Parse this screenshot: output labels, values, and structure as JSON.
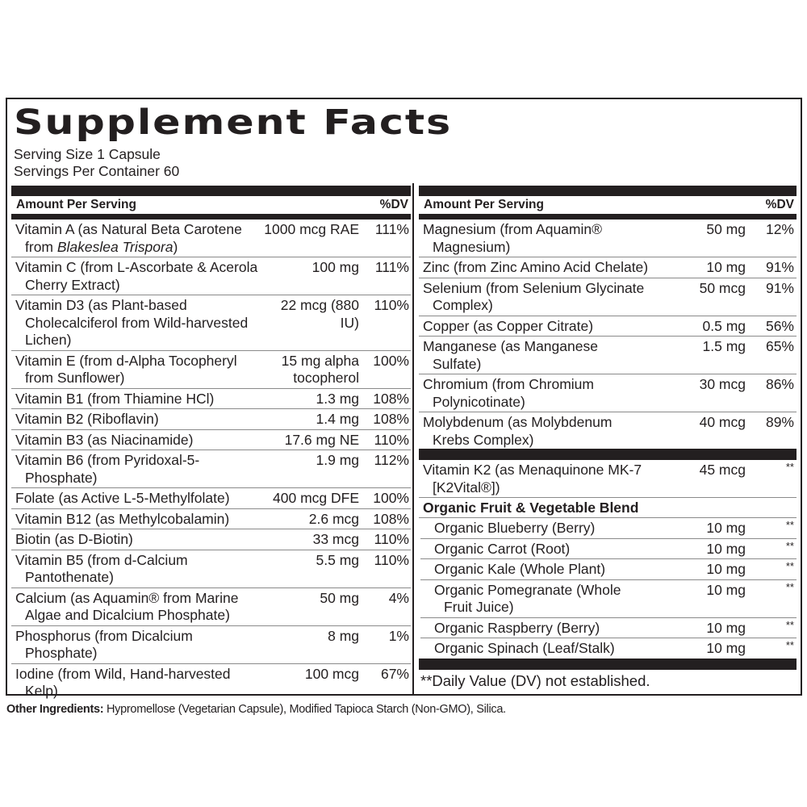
{
  "title": "Supplement Facts",
  "serving_size": "Serving Size 1 Capsule",
  "servings_per_container": "Servings Per Container 60",
  "header": {
    "amount": "Amount Per Serving",
    "dv": "%DV"
  },
  "left_rows": [
    {
      "name": "Vitamin A (as Natural Beta Carotene from ",
      "name_italic": "Blakeslea Trispora",
      "name_suffix": ")",
      "amount": "1000 mcg RAE",
      "dv": "111%"
    },
    {
      "name": "Vitamin C (from L-Ascorbate & Acerola Cherry Extract)",
      "amount": "100 mg",
      "dv": "111%"
    },
    {
      "name": "Vitamin D3 (as Plant-based Cholecalciferol from Wild-harvested Lichen)",
      "amount": "22 mcg (880 IU)",
      "dv": "110%"
    },
    {
      "name": "Vitamin E (from d-Alpha Tocopheryl from Sunflower)",
      "amount": "15 mg alpha tocopherol",
      "dv": "100%"
    },
    {
      "name": "Vitamin B1 (from Thiamine HCl)",
      "amount": "1.3 mg",
      "dv": "108%"
    },
    {
      "name": "Vitamin B2 (Riboflavin)",
      "amount": "1.4 mg",
      "dv": "108%"
    },
    {
      "name": "Vitamin B3 (as Niacinamide)",
      "amount": "17.6 mg NE",
      "dv": "110%"
    },
    {
      "name": "Vitamin B6 (from Pyridoxal-5-Phosphate)",
      "amount": "1.9 mg",
      "dv": "112%"
    },
    {
      "name": "Folate (as Active L-5-Methylfolate)",
      "amount": "400 mcg DFE",
      "dv": "100%"
    },
    {
      "name": "Vitamin B12 (as Methylcobalamin)",
      "amount": "2.6 mcg",
      "dv": "108%"
    },
    {
      "name": "Biotin (as D-Biotin)",
      "amount": "33 mcg",
      "dv": "110%"
    },
    {
      "name": "Vitamin B5 (from d-Calcium Pantothenate)",
      "amount": "5.5 mg",
      "dv": "110%"
    },
    {
      "name": "Calcium (as Aquamin® from Marine Algae and Dicalcium Phosphate)",
      "amount": "50 mg",
      "dv": "4%"
    },
    {
      "name": "Phosphorus (from Dicalcium Phosphate)",
      "amount": "8 mg",
      "dv": "1%"
    },
    {
      "name": "Iodine (from Wild, Hand-harvested Kelp)",
      "amount": "100 mcg",
      "dv": "67%"
    }
  ],
  "right_rows": [
    {
      "name": "Magnesium (from Aquamin® Magnesium)",
      "amount": "50 mg",
      "dv": "12%"
    },
    {
      "name": "Zinc (from Zinc Amino Acid Chelate)",
      "amount": "10 mg",
      "dv": "91%"
    },
    {
      "name": "Selenium (from Selenium Glycinate Complex)",
      "amount": "50 mcg",
      "dv": "91%"
    },
    {
      "name": "Copper (as Copper Citrate)",
      "amount": "0.5 mg",
      "dv": "56%"
    },
    {
      "name": "Manganese (as Manganese Sulfate)",
      "amount": "1.5 mg",
      "dv": "65%"
    },
    {
      "name": "Chromium (from Chromium Polynicotinate)",
      "amount": "30 mcg",
      "dv": "86%"
    },
    {
      "name": "Molybdenum (as Molybdenum Krebs Complex)",
      "amount": "40 mcg",
      "dv": "89%"
    }
  ],
  "k2_row": {
    "name": "Vitamin K2 (as Menaquinone MK-7 [K2Vital®])",
    "amount": "45 mcg",
    "dv": "**"
  },
  "blend": {
    "title": "Organic Fruit & Vegetable Blend",
    "items": [
      {
        "name": "Organic Blueberry (Berry)",
        "amount": "10 mg",
        "dv": "**"
      },
      {
        "name": "Organic Carrot (Root)",
        "amount": "10 mg",
        "dv": "**"
      },
      {
        "name": "Organic Kale (Whole Plant)",
        "amount": "10 mg",
        "dv": "**"
      },
      {
        "name": "Organic Pomegranate (Whole Fruit Juice)",
        "amount": "10 mg",
        "dv": "**"
      },
      {
        "name": "Organic Raspberry (Berry)",
        "amount": "10 mg",
        "dv": "**"
      },
      {
        "name": "Organic  Spinach (Leaf/Stalk)",
        "amount": "10 mg",
        "dv": "**"
      }
    ]
  },
  "footnote": "**Daily Value (DV) not established.",
  "other_ingredients": {
    "label": "Other Ingredients:",
    "text": " Hypromellose (Vegetarian Capsule), Modified Tapioca Starch (Non-GMO), Silica."
  }
}
